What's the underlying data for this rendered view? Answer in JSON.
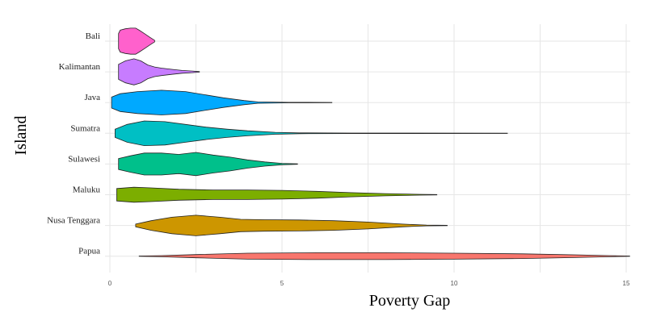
{
  "chart_data": {
    "type": "violin",
    "title": "",
    "xlabel": "Poverty Gap",
    "ylabel": "Island",
    "xlim": [
      0,
      15
    ],
    "xticks": [
      0,
      5,
      10,
      15
    ],
    "orientation": "horizontal",
    "grid": true,
    "legend": "none",
    "categories": [
      "Bali",
      "Kalimantan",
      "Java",
      "Sumatra",
      "Sulawesi",
      "Maluku",
      "Nusa Tenggara",
      "Papua"
    ],
    "series": [
      {
        "category": "Bali",
        "min": 0.25,
        "max": 1.3,
        "color": "#FF61CC",
        "density": [
          [
            0.25,
            0.55
          ],
          [
            0.3,
            0.8
          ],
          [
            0.45,
            0.9
          ],
          [
            0.6,
            0.95
          ],
          [
            0.75,
            0.95
          ],
          [
            0.85,
            0.8
          ],
          [
            1.0,
            0.55
          ],
          [
            1.15,
            0.3
          ],
          [
            1.3,
            0.05
          ]
        ]
      },
      {
        "category": "Kalimantan",
        "min": 0.25,
        "max": 2.6,
        "color": "#C77CFF",
        "density": [
          [
            0.25,
            0.55
          ],
          [
            0.45,
            0.8
          ],
          [
            0.7,
            0.95
          ],
          [
            0.9,
            0.8
          ],
          [
            1.1,
            0.5
          ],
          [
            1.3,
            0.35
          ],
          [
            1.5,
            0.27
          ],
          [
            1.8,
            0.18
          ],
          [
            2.1,
            0.1
          ],
          [
            2.4,
            0.06
          ],
          [
            2.6,
            0.02
          ]
        ]
      },
      {
        "category": "Java",
        "min": 0.05,
        "max": 6.45,
        "color": "#00A9FF",
        "density": [
          [
            0.05,
            0.4
          ],
          [
            0.3,
            0.65
          ],
          [
            0.8,
            0.8
          ],
          [
            1.5,
            0.9
          ],
          [
            2.2,
            0.8
          ],
          [
            2.8,
            0.55
          ],
          [
            3.3,
            0.35
          ],
          [
            3.9,
            0.15
          ],
          [
            4.3,
            0.05
          ],
          [
            5.2,
            0.02
          ],
          [
            6.45,
            0.01
          ]
        ]
      },
      {
        "category": "Sumatra",
        "min": 0.15,
        "max": 11.55,
        "color": "#00BFC4",
        "density": [
          [
            0.15,
            0.3
          ],
          [
            0.5,
            0.65
          ],
          [
            1.0,
            0.9
          ],
          [
            1.6,
            0.85
          ],
          [
            2.2,
            0.65
          ],
          [
            2.8,
            0.45
          ],
          [
            3.4,
            0.3
          ],
          [
            4.0,
            0.18
          ],
          [
            4.8,
            0.07
          ],
          [
            5.5,
            0.03
          ],
          [
            7.0,
            0.015
          ],
          [
            11.55,
            0.01
          ]
        ]
      },
      {
        "category": "Sulawesi",
        "min": 0.25,
        "max": 5.45,
        "color": "#00C08B",
        "density": [
          [
            0.25,
            0.4
          ],
          [
            0.6,
            0.6
          ],
          [
            1.0,
            0.8
          ],
          [
            1.5,
            0.8
          ],
          [
            2.0,
            0.7
          ],
          [
            2.5,
            0.85
          ],
          [
            3.0,
            0.65
          ],
          [
            3.5,
            0.5
          ],
          [
            4.0,
            0.3
          ],
          [
            4.5,
            0.15
          ],
          [
            5.0,
            0.05
          ],
          [
            5.45,
            0.02
          ]
        ]
      },
      {
        "category": "Maluku",
        "min": 0.2,
        "max": 9.5,
        "color": "#7CAE00",
        "density": [
          [
            0.2,
            0.45
          ],
          [
            0.7,
            0.55
          ],
          [
            1.2,
            0.5
          ],
          [
            2.0,
            0.4
          ],
          [
            3.0,
            0.35
          ],
          [
            4.0,
            0.35
          ],
          [
            5.0,
            0.32
          ],
          [
            6.0,
            0.25
          ],
          [
            7.0,
            0.15
          ],
          [
            8.0,
            0.08
          ],
          [
            9.0,
            0.03
          ],
          [
            9.5,
            0.01
          ]
        ]
      },
      {
        "category": "Nusa Tenggara",
        "min": 0.75,
        "max": 9.8,
        "color": "#CD9600",
        "density": [
          [
            0.75,
            0.1
          ],
          [
            1.2,
            0.35
          ],
          [
            1.8,
            0.6
          ],
          [
            2.5,
            0.75
          ],
          [
            3.2,
            0.6
          ],
          [
            3.8,
            0.45
          ],
          [
            4.5,
            0.42
          ],
          [
            5.5,
            0.4
          ],
          [
            6.5,
            0.35
          ],
          [
            7.5,
            0.25
          ],
          [
            8.5,
            0.1
          ],
          [
            9.2,
            0.03
          ],
          [
            9.8,
            0.01
          ]
        ]
      },
      {
        "category": "Papua",
        "min": 0.85,
        "max": 15.1,
        "color": "#F8766D",
        "density": [
          [
            0.85,
            0.01
          ],
          [
            1.5,
            0.04
          ],
          [
            2.5,
            0.12
          ],
          [
            4.0,
            0.22
          ],
          [
            6.0,
            0.25
          ],
          [
            8.0,
            0.25
          ],
          [
            10.0,
            0.22
          ],
          [
            12.0,
            0.17
          ],
          [
            13.5,
            0.1
          ],
          [
            14.5,
            0.04
          ],
          [
            15.1,
            0.01
          ]
        ]
      }
    ]
  }
}
